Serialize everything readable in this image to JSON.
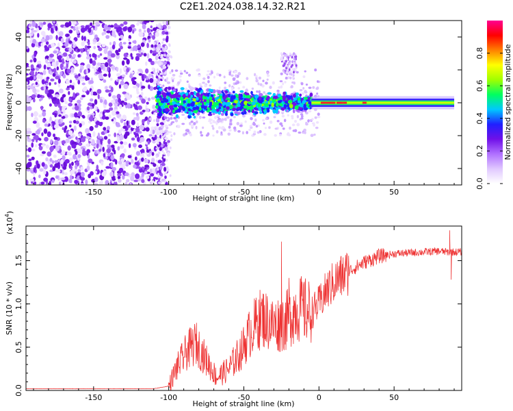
{
  "chart_data": [
    {
      "type": "heatmap",
      "title": "C2E1.2024.038.14.32.R21",
      "xlabel": "Height of straight line (km)",
      "ylabel": "Frequency (Hz)",
      "xlim": [
        -195,
        95
      ],
      "ylim": [
        -50,
        50
      ],
      "xticks": [
        -150,
        -100,
        -50,
        0,
        50
      ],
      "yticks": [
        -40,
        -20,
        0,
        20,
        40
      ],
      "colorbar": {
        "label": "Normalized spectral amplitude",
        "range": [
          0.0,
          1.0
        ],
        "ticks": [
          "0.0",
          "0.2",
          "0.4",
          "0.6",
          "0.8"
        ],
        "colors": [
          "#ffffff",
          "#e0c8ff",
          "#b070ff",
          "#7010e8",
          "#2020ff",
          "#00c8ff",
          "#00ff60",
          "#a0ff00",
          "#ffff00",
          "#ff8000",
          "#ff0000",
          "#ff0090"
        ]
      },
      "regions": [
        {
          "x_range": [
            -195,
            -108
          ],
          "freq_range": [
            -50,
            50
          ],
          "amplitude": 0.05,
          "description": "broadband low-amplitude noise"
        },
        {
          "x_range": [
            -108,
            -5
          ],
          "freq_center": 0,
          "freq_halfwidth": 10,
          "amplitude": 0.3
        },
        {
          "x_range": [
            -5,
            90
          ],
          "freq_center": 0,
          "freq_halfwidth": 2,
          "amplitude": 0.65
        },
        {
          "x_range": [
            -25,
            -15
          ],
          "freq_range": [
            15,
            30
          ],
          "amplitude": 0.05
        }
      ]
    },
    {
      "type": "line",
      "xlabel": "Height of straight line (km)",
      "ylabel": "SNR (10 * v/v)",
      "scale_note": "(x10",
      "scale_exp": "4",
      "scale_suffix": ")",
      "xlim": [
        -195,
        95
      ],
      "ylim": [
        0,
        1.9
      ],
      "xticks": [
        -150,
        -100,
        -50,
        0,
        50
      ],
      "yticks": [
        "0.0",
        "0.5",
        "1.0",
        "1.5"
      ],
      "color": "#ee3333",
      "envelope": [
        {
          "x": -195,
          "y": 0.02
        },
        {
          "x": -110,
          "y": 0.02
        },
        {
          "x": -100,
          "y": 0.05
        },
        {
          "x": -95,
          "y": 0.25
        },
        {
          "x": -88,
          "y": 0.45
        },
        {
          "x": -82,
          "y": 0.55
        },
        {
          "x": -75,
          "y": 0.35
        },
        {
          "x": -68,
          "y": 0.15
        },
        {
          "x": -60,
          "y": 0.25
        },
        {
          "x": -52,
          "y": 0.45
        },
        {
          "x": -45,
          "y": 0.7
        },
        {
          "x": -38,
          "y": 0.85
        },
        {
          "x": -30,
          "y": 0.75
        },
        {
          "x": -22,
          "y": 0.8
        },
        {
          "x": -15,
          "y": 0.95
        },
        {
          "x": -5,
          "y": 0.9
        },
        {
          "x": 0,
          "y": 1.0
        },
        {
          "x": 5,
          "y": 1.15
        },
        {
          "x": 10,
          "y": 1.25
        },
        {
          "x": 20,
          "y": 1.38
        },
        {
          "x": 30,
          "y": 1.48
        },
        {
          "x": 40,
          "y": 1.55
        },
        {
          "x": 50,
          "y": 1.58
        },
        {
          "x": 60,
          "y": 1.59
        },
        {
          "x": 70,
          "y": 1.6
        },
        {
          "x": 80,
          "y": 1.61
        },
        {
          "x": 85,
          "y": 1.6
        },
        {
          "x": 95,
          "y": 1.6
        }
      ],
      "spikes": [
        {
          "x": -85,
          "y": 0.72
        },
        {
          "x": -40,
          "y": 1.05
        },
        {
          "x": -25,
          "y": 1.72
        },
        {
          "x": -20,
          "y": 1.3
        },
        {
          "x": -12,
          "y": 1.28
        },
        {
          "x": 5,
          "y": 1.25
        },
        {
          "x": 87,
          "y": 1.85
        },
        {
          "x": 88,
          "y": 1.28
        }
      ]
    }
  ]
}
